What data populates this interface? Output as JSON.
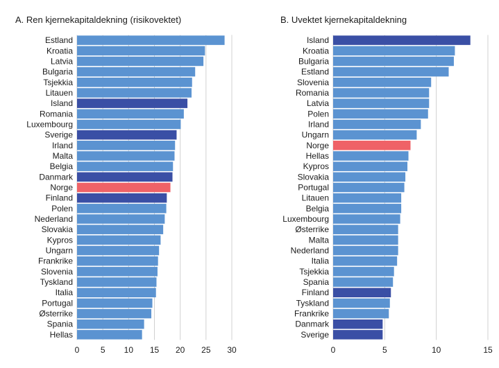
{
  "colors": {
    "default": "#5b93d1",
    "highlight_nordic": "#3a4fa5",
    "highlight_norway": "#ef6267",
    "gridline": "#d0d0d0",
    "text": "#1a1a1a"
  },
  "chart_data": [
    {
      "type": "bar",
      "orientation": "horizontal",
      "title": "A. Ren kjernekapitaldekning (risikovektet)",
      "xlim": [
        0,
        30
      ],
      "xticks": [
        0,
        5,
        10,
        15,
        20,
        25,
        30
      ],
      "categories": [
        "Estland",
        "Kroatia",
        "Latvia",
        "Bulgaria",
        "Tsjekkia",
        "Litauen",
        "Island",
        "Romania",
        "Luxembourg",
        "Sverige",
        "Irland",
        "Malta",
        "Belgia",
        "Danmark",
        "Norge",
        "Finland",
        "Polen",
        "Nederland",
        "Slovakia",
        "Kypros",
        "Ungarn",
        "Frankrike",
        "Slovenia",
        "Tyskland",
        "Italia",
        "Portugal",
        "Østerrike",
        "Spania",
        "Hellas"
      ],
      "values": [
        28.6,
        24.8,
        24.5,
        22.9,
        22.3,
        22.2,
        21.4,
        20.7,
        20.1,
        19.3,
        19.0,
        18.9,
        18.6,
        18.5,
        18.1,
        17.4,
        17.3,
        17.0,
        16.7,
        16.2,
        15.9,
        15.7,
        15.6,
        15.4,
        15.3,
        14.6,
        14.4,
        13.0,
        12.6
      ],
      "highlight": {
        "Island": "highlight_nordic",
        "Sverige": "highlight_nordic",
        "Danmark": "highlight_nordic",
        "Finland": "highlight_nordic",
        "Norge": "highlight_norway"
      }
    },
    {
      "type": "bar",
      "orientation": "horizontal",
      "title": "B. Uvektet kjernekapitaldekning",
      "xlim": [
        0,
        15
      ],
      "xticks": [
        0,
        5,
        10,
        15
      ],
      "categories": [
        "Island",
        "Kroatia",
        "Bulgaria",
        "Estland",
        "Slovenia",
        "Romania",
        "Latvia",
        "Polen",
        "Irland",
        "Ungarn",
        "Norge",
        "Hellas",
        "Kypros",
        "Slovakia",
        "Portugal",
        "Litauen",
        "Belgia",
        "Luxembourg",
        "Østerrike",
        "Malta",
        "Nederland",
        "Italia",
        "Tsjekkia",
        "Spania",
        "Finland",
        "Tyskland",
        "Frankrike",
        "Danmark",
        "Sverige"
      ],
      "values": [
        13.3,
        11.8,
        11.7,
        11.2,
        9.5,
        9.3,
        9.3,
        9.2,
        8.5,
        8.1,
        7.5,
        7.3,
        7.2,
        7.0,
        6.9,
        6.6,
        6.6,
        6.5,
        6.3,
        6.3,
        6.3,
        6.2,
        5.9,
        5.8,
        5.6,
        5.5,
        5.4,
        4.8,
        4.8
      ],
      "highlight": {
        "Island": "highlight_nordic",
        "Finland": "highlight_nordic",
        "Danmark": "highlight_nordic",
        "Sverige": "highlight_nordic",
        "Norge": "highlight_norway"
      }
    }
  ]
}
